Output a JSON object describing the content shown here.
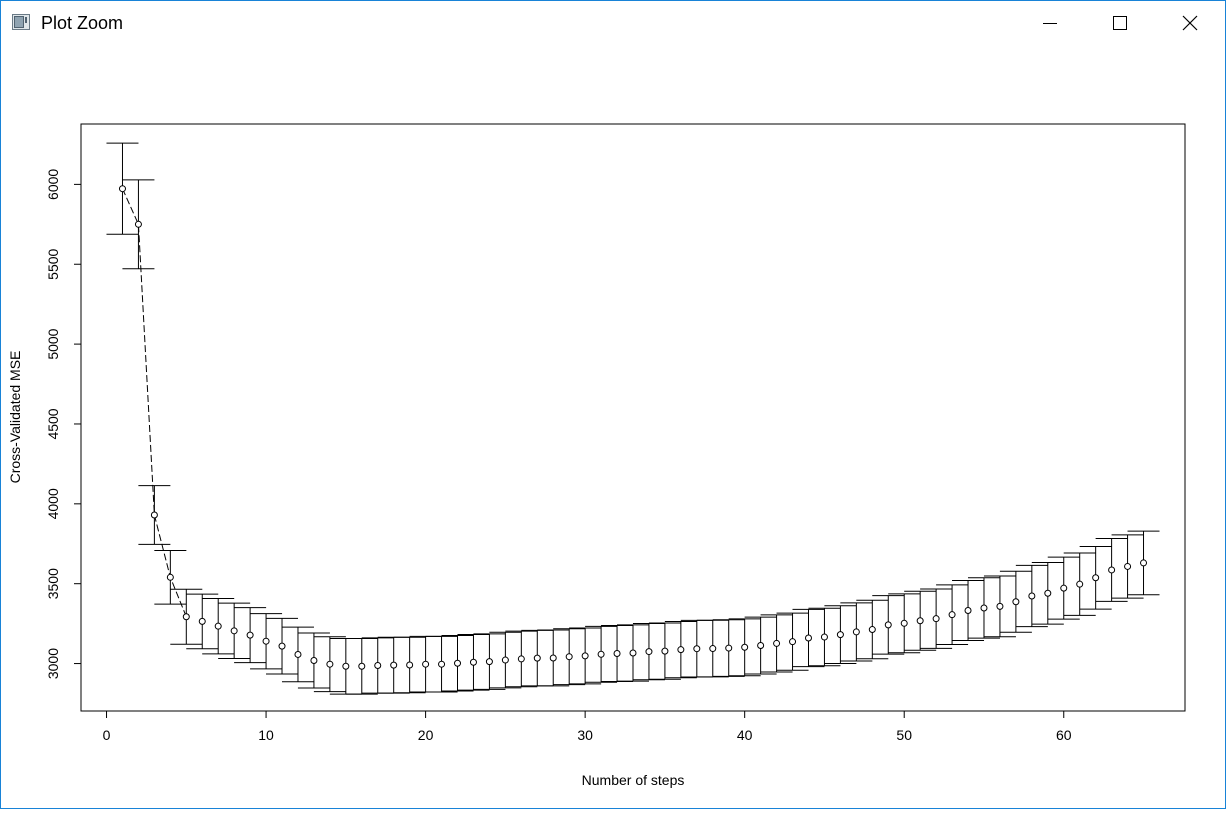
{
  "window": {
    "title": "Plot Zoom",
    "app_icon": "r-plot-window-icon",
    "controls": {
      "minimize": "minimize-icon",
      "maximize": "maximize-icon",
      "close": "close-icon"
    }
  },
  "chart_data": {
    "type": "scatter",
    "xlabel": "Number of steps",
    "ylabel": "Cross-Validated MSE",
    "xlim": [
      -1.6,
      67.6
    ],
    "ylim": [
      2703,
      6378
    ],
    "xticks": [
      0,
      10,
      20,
      30,
      40,
      50,
      60
    ],
    "yticks": [
      3000,
      3500,
      4000,
      4500,
      5000,
      5500,
      6000
    ],
    "grid": false,
    "line_through_points": [
      1,
      5
    ],
    "x": [
      1,
      2,
      3,
      4,
      5,
      6,
      7,
      8,
      9,
      10,
      11,
      12,
      13,
      14,
      15,
      16,
      17,
      18,
      19,
      20,
      21,
      22,
      23,
      24,
      25,
      26,
      27,
      28,
      29,
      30,
      31,
      32,
      33,
      34,
      35,
      36,
      37,
      38,
      39,
      40,
      41,
      42,
      43,
      44,
      45,
      46,
      47,
      48,
      49,
      50,
      51,
      52,
      53,
      54,
      55,
      56,
      57,
      58,
      59,
      60,
      61,
      62,
      63,
      64,
      65
    ],
    "y": [
      5973,
      5750,
      3930,
      3540,
      3293,
      3264,
      3234,
      3205,
      3178,
      3140,
      3109,
      3057,
      3019,
      2996,
      2983,
      2983,
      2988,
      2990,
      2991,
      2996,
      2996,
      3002,
      3008,
      3012,
      3022,
      3029,
      3034,
      3035,
      3043,
      3048,
      3058,
      3063,
      3066,
      3075,
      3078,
      3087,
      3093,
      3094,
      3097,
      3102,
      3113,
      3126,
      3137,
      3160,
      3166,
      3181,
      3198,
      3213,
      3242,
      3252,
      3268,
      3281,
      3306,
      3332,
      3348,
      3358,
      3387,
      3423,
      3440,
      3472,
      3497,
      3537,
      3586,
      3608,
      3630
    ],
    "se_upper": [
      6258,
      6028,
      4114,
      3708,
      3465,
      3435,
      3407,
      3378,
      3350,
      3313,
      3283,
      3228,
      3191,
      3168,
      3157,
      3157,
      3161,
      3165,
      3165,
      3170,
      3170,
      3176,
      3182,
      3186,
      3196,
      3203,
      3208,
      3210,
      3218,
      3223,
      3233,
      3238,
      3242,
      3251,
      3254,
      3263,
      3270,
      3271,
      3274,
      3280,
      3291,
      3305,
      3316,
      3339,
      3346,
      3362,
      3380,
      3396,
      3425,
      3436,
      3453,
      3467,
      3493,
      3520,
      3537,
      3548,
      3578,
      3615,
      3633,
      3666,
      3692,
      3733,
      3783,
      3806,
      3829
    ],
    "se_lower": [
      5688,
      5472,
      3746,
      3372,
      3121,
      3093,
      3061,
      3032,
      3006,
      2967,
      2935,
      2886,
      2847,
      2824,
      2809,
      2809,
      2815,
      2815,
      2817,
      2822,
      2822,
      2828,
      2834,
      2838,
      2848,
      2855,
      2860,
      2860,
      2868,
      2873,
      2883,
      2888,
      2890,
      2899,
      2902,
      2911,
      2916,
      2917,
      2920,
      2924,
      2935,
      2947,
      2958,
      2981,
      2986,
      3000,
      3016,
      3030,
      3059,
      3068,
      3083,
      3095,
      3119,
      3144,
      3159,
      3168,
      3196,
      3231,
      3247,
      3278,
      3302,
      3341,
      3389,
      3410,
      3431
    ]
  }
}
